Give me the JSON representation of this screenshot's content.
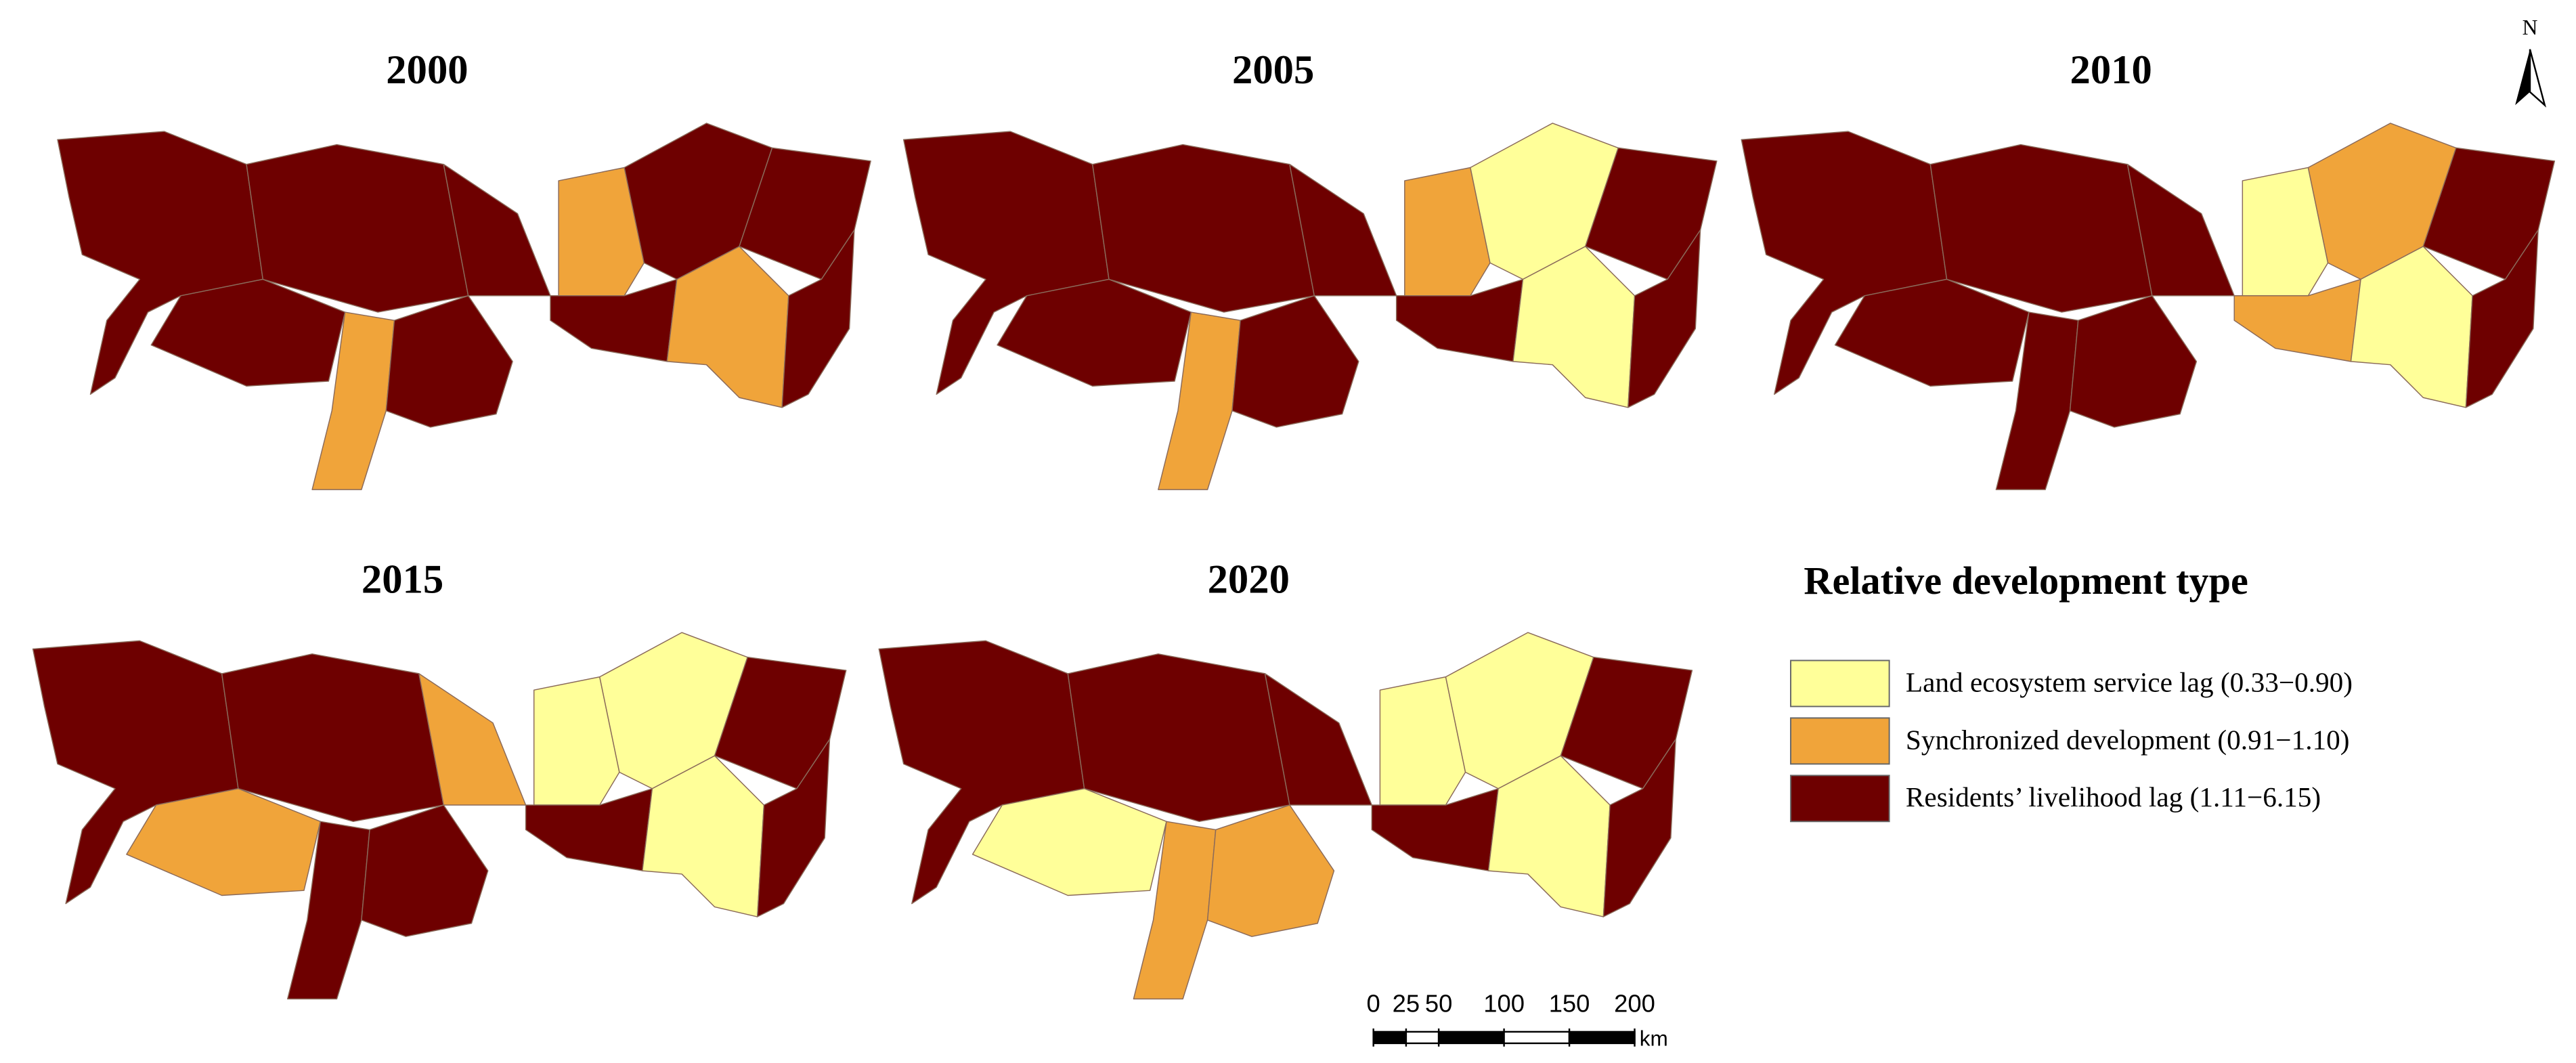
{
  "maps": [
    {
      "title": "2000"
    },
    {
      "title": "2005"
    },
    {
      "title": "2010"
    },
    {
      "title": "2015"
    },
    {
      "title": "2020"
    }
  ],
  "legend": {
    "title": "Relative development type",
    "items": [
      {
        "label": "Land ecosystem service lag (0.33−0.90)",
        "color": "#ffff99"
      },
      {
        "label": "Synchronized development (0.91−1.10)",
        "color": "#f0a43a"
      },
      {
        "label": "Residents’ livelihood lag (1.11−6.15)",
        "color": "#6e0000"
      }
    ]
  },
  "scale_bar": {
    "ticks": [
      0,
      25,
      50,
      100,
      150,
      200
    ],
    "unit": "km"
  },
  "north_arrow": "N"
}
